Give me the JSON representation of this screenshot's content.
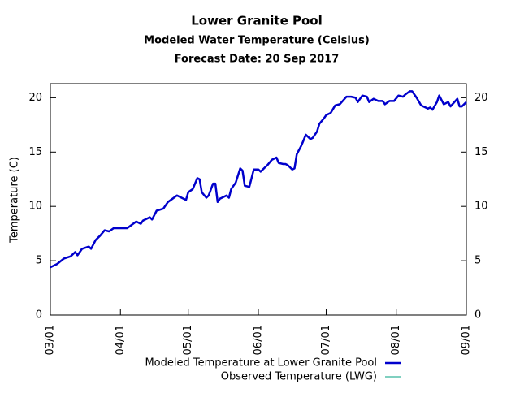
{
  "chart_data": {
    "type": "line",
    "title": "Lower Granite Pool",
    "subtitle": "Modeled Water Temperature (Celsius)",
    "forecast": "Forecast Date: 20 Sep 2017",
    "ylabel": "Temperature (C)",
    "xlim": [
      "03/01",
      "09/01"
    ],
    "xticks": [
      "03/01",
      "04/01",
      "05/01",
      "06/01",
      "07/01",
      "08/01",
      "09/01"
    ],
    "ylim": [
      0,
      21.3
    ],
    "yticks": [
      0,
      5,
      10,
      15,
      20
    ],
    "legend": "bottom",
    "series": [
      {
        "name": "Modeled Temperature at Lower Granite Pool",
        "color": "#0000cc",
        "x": [
          "03/01",
          "03/04",
          "03/07",
          "03/10",
          "03/12",
          "03/13",
          "03/15",
          "03/18",
          "03/19",
          "03/21",
          "03/23",
          "03/25",
          "03/27",
          "03/29",
          "04/01",
          "04/04",
          "04/06",
          "04/08",
          "04/10",
          "04/11",
          "04/14",
          "04/15",
          "04/17",
          "04/20",
          "04/22",
          "04/24",
          "04/26",
          "04/28",
          "04/30",
          "05/01",
          "05/03",
          "05/05",
          "05/06",
          "05/07",
          "05/09",
          "05/10",
          "05/12",
          "05/13",
          "05/14",
          "05/15",
          "05/18",
          "05/19",
          "05/20",
          "05/22",
          "05/24",
          "05/25",
          "05/26",
          "05/28",
          "05/30",
          "06/01",
          "06/02",
          "06/04",
          "06/05",
          "06/07",
          "06/09",
          "06/10",
          "06/12",
          "06/13",
          "06/14",
          "06/16",
          "06/17",
          "06/18",
          "06/20",
          "06/21",
          "06/22",
          "06/24",
          "06/25",
          "06/27",
          "06/28",
          "06/30",
          "07/01",
          "07/03",
          "07/05",
          "07/07",
          "07/10",
          "07/12",
          "07/14",
          "07/15",
          "07/17",
          "07/19",
          "07/20",
          "07/22",
          "07/24",
          "07/26",
          "07/27",
          "07/29",
          "07/31",
          "08/02",
          "08/04",
          "08/05",
          "08/07",
          "08/08",
          "08/10",
          "08/12",
          "08/13",
          "08/15",
          "08/16",
          "08/17",
          "08/19",
          "08/20",
          "08/22",
          "08/24",
          "08/25",
          "08/28",
          "08/29",
          "08/30",
          "09/01"
        ],
        "values": [
          4.4,
          4.7,
          5.2,
          5.4,
          5.8,
          5.5,
          6.1,
          6.3,
          6.1,
          6.9,
          7.3,
          7.8,
          7.7,
          8.0,
          8.0,
          8.0,
          8.3,
          8.6,
          8.4,
          8.7,
          9.0,
          8.8,
          9.6,
          9.8,
          10.4,
          10.7,
          11.0,
          10.8,
          10.6,
          11.3,
          11.6,
          12.6,
          12.5,
          11.3,
          10.8,
          11.0,
          12.1,
          12.1,
          10.4,
          10.7,
          11.0,
          10.8,
          11.6,
          12.2,
          13.5,
          13.3,
          11.9,
          11.8,
          13.4,
          13.4,
          13.2,
          13.6,
          13.8,
          14.3,
          14.5,
          14.0,
          13.9,
          13.9,
          13.8,
          13.4,
          13.5,
          14.8,
          15.6,
          16.1,
          16.6,
          16.2,
          16.3,
          16.9,
          17.6,
          18.1,
          18.4,
          18.6,
          19.3,
          19.4,
          20.1,
          20.1,
          20.0,
          19.6,
          20.2,
          20.1,
          19.6,
          19.9,
          19.7,
          19.7,
          19.4,
          19.7,
          19.7,
          20.2,
          20.1,
          20.3,
          20.6,
          20.6,
          20.0,
          19.3,
          19.2,
          19.0,
          19.1,
          18.9,
          19.6,
          20.2,
          19.4,
          19.6,
          19.2,
          19.9,
          19.2,
          19.2,
          19.6
        ]
      },
      {
        "name": "Observed Temperature (LWG)",
        "color": "#00a080",
        "x": [],
        "values": []
      }
    ]
  }
}
